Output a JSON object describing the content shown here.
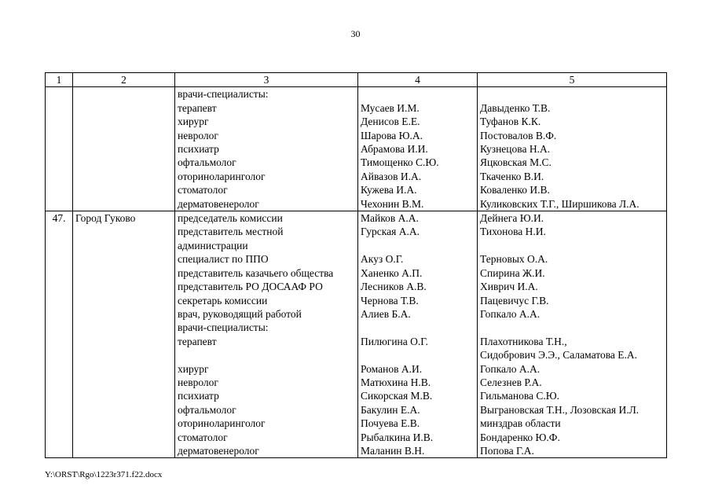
{
  "page_number": "30",
  "footer": "Y:\\ORST\\Rgo\\1223r371.f22.docx",
  "table": {
    "header": [
      "1",
      "2",
      "3",
      "4",
      "5"
    ],
    "blocks": [
      {
        "lines": [
          {
            "c1": "",
            "c2": "",
            "c3": "врачи-специалисты:",
            "c4": "",
            "c5": ""
          },
          {
            "c1": "",
            "c2": "",
            "c3": "терапевт",
            "c4": "Мусаев И.М.",
            "c5": "Давыденко Т.В."
          },
          {
            "c1": "",
            "c2": "",
            "c3": "хирург",
            "c4": "Денисов Е.Е.",
            "c5": "Туфанов К.К."
          },
          {
            "c1": "",
            "c2": "",
            "c3": "невролог",
            "c4": "Шарова Ю.А.",
            "c5": "Постовалов В.Ф."
          },
          {
            "c1": "",
            "c2": "",
            "c3": "психиатр",
            "c4": "Абрамова И.И.",
            "c5": "Кузнецова Н.А."
          },
          {
            "c1": "",
            "c2": "",
            "c3": "офтальмолог",
            "c4": "Тимощенко С.Ю.",
            "c5": "Яцковская М.С."
          },
          {
            "c1": "",
            "c2": "",
            "c3": "оториноларинголог",
            "c4": "Айвазов И.А.",
            "c5": "Ткаченко В.И."
          },
          {
            "c1": "",
            "c2": "",
            "c3": "стоматолог",
            "c4": "Кужева И.А.",
            "c5": "Коваленко И.В."
          },
          {
            "c1": "",
            "c2": "",
            "c3": "дерматовенеролог",
            "c4": "Чехонин В.М.",
            "c5": "Куликовских Т.Г., Ширшикова Л.А."
          }
        ]
      },
      {
        "lines": [
          {
            "c1": "47.",
            "c2": "Город Гуково",
            "c3": "председатель комиссии",
            "c4": "Майков А.А.",
            "c5": "Дейнега Ю.И."
          },
          {
            "c1": "",
            "c2": "",
            "c3": "представитель местной",
            "c4": "Гурская А.А.",
            "c5": "Тихонова Н.И."
          },
          {
            "c1": "",
            "c2": "",
            "c3": "администрации",
            "c4": "",
            "c5": ""
          },
          {
            "c1": "",
            "c2": "",
            "c3": "специалист по ППО",
            "c4": "Акуз О.Г.",
            "c5": "Терновых О.А."
          },
          {
            "c1": "",
            "c2": "",
            "c3": "представитель казачьего общества",
            "c4": "Ханенко А.П.",
            "c5": "Спирина Ж.И."
          },
          {
            "c1": "",
            "c2": "",
            "c3": "представитель РО ДОСААФ РО",
            "c4": "Лесников А.В.",
            "c5": "Хиврич И.А."
          },
          {
            "c1": "",
            "c2": "",
            "c3": "секретарь комиссии",
            "c4": "Чернова Т.В.",
            "c5": "Пацевичус Г.В."
          },
          {
            "c1": "",
            "c2": "",
            "c3": "врач, руководящий работой",
            "c4": "Алиев Б.А.",
            "c5": "Гопкало А.А."
          },
          {
            "c1": "",
            "c2": "",
            "c3": "врачи-специалисты:",
            "c4": "",
            "c5": ""
          },
          {
            "c1": "",
            "c2": "",
            "c3": "терапевт",
            "c4": "Пилюгина О.Г.",
            "c5": "Плахотникова Т.Н.,"
          },
          {
            "c1": "",
            "c2": "",
            "c3": "",
            "c4": "",
            "c5": "Сидобрович Э.Э., Саламатова Е.А."
          },
          {
            "c1": "",
            "c2": "",
            "c3": "хирург",
            "c4": "Романов А.И.",
            "c5": "Гопкало А.А."
          },
          {
            "c1": "",
            "c2": "",
            "c3": "невролог",
            "c4": "Матюхина Н.В.",
            "c5": "Селезнев Р.А."
          },
          {
            "c1": "",
            "c2": "",
            "c3": "психиатр",
            "c4": "Сикорская М.В.",
            "c5": "Гильманова С.Ю."
          },
          {
            "c1": "",
            "c2": "",
            "c3": "офтальмолог",
            "c4": "Бакулин Е.А.",
            "c5": "Выграновская Т.Н., Лозовская И.Л."
          },
          {
            "c1": "",
            "c2": "",
            "c3": "оториноларинголог",
            "c4": "Почуева Е.В.",
            "c5": "минздрав области"
          },
          {
            "c1": "",
            "c2": "",
            "c3": "стоматолог",
            "c4": "Рыбалкина И.В.",
            "c5": "Бондаренко Ю.Ф."
          },
          {
            "c1": "",
            "c2": "",
            "c3": "дерматовенеролог",
            "c4": "Маланин В.Н.",
            "c5": "Попова Г.А."
          }
        ]
      }
    ]
  }
}
